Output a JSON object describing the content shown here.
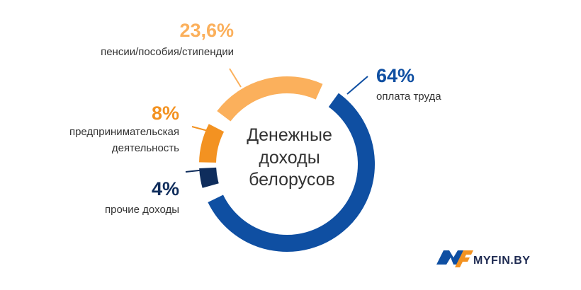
{
  "chart_data": {
    "type": "pie",
    "variant": "donut",
    "title": "Денежные доходы белорусов",
    "title_lines": [
      "Денежные",
      "доходы",
      "белорусов"
    ],
    "categories": [
      "оплата труда",
      "прочие доходы",
      "предпринимательская деятельность",
      "пенсии/пособия/стипендии"
    ],
    "values": [
      64,
      4,
      8,
      23.6
    ],
    "value_labels": [
      "64%",
      "4%",
      "8%",
      "23,6%"
    ],
    "desc_lines": [
      [
        "оплата труда"
      ],
      [
        "прочие доходы"
      ],
      [
        "предпринимательская",
        "деятельность"
      ],
      [
        "пенсии/пособия/стипендии"
      ]
    ],
    "colors": [
      "#0f4fa2",
      "#0f2d5c",
      "#f39221",
      "#fbb05c"
    ]
  },
  "logo": {
    "text": "MYFIN.BY",
    "colors": [
      "#0f4fa2",
      "#f39221",
      "#1f2b52"
    ]
  }
}
